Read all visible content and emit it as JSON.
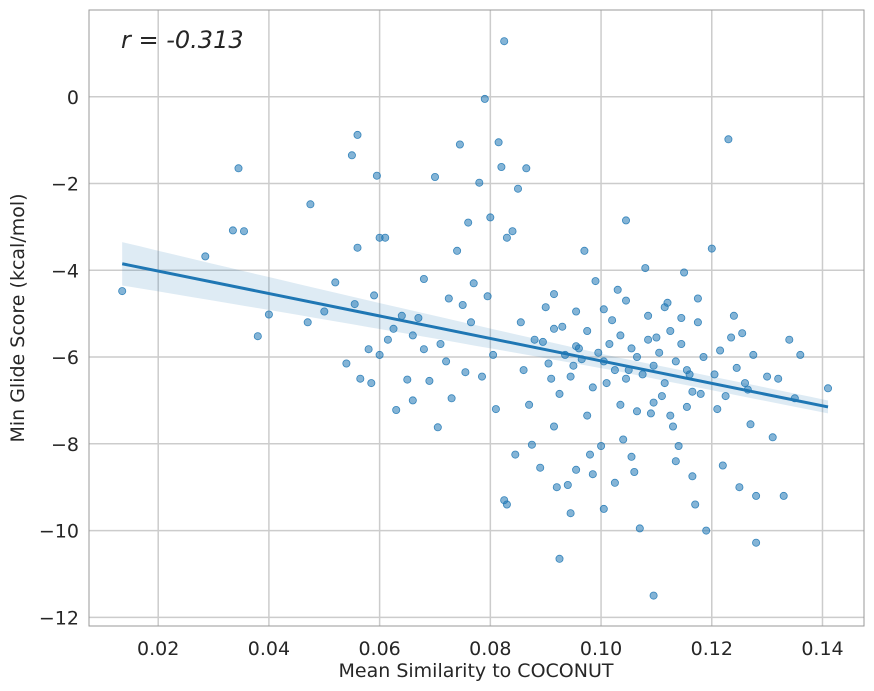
{
  "chart_data": {
    "type": "scatter",
    "title": "",
    "xlabel": "Mean Similarity to COCONUT",
    "ylabel": "Min Glide Score (kcal/mol)",
    "xlim": [
      0.0075,
      0.1475
    ],
    "ylim": [
      -12.2,
      2.0
    ],
    "x_ticks": [
      0.02,
      0.04,
      0.06,
      0.08,
      0.1,
      0.12,
      0.14
    ],
    "x_tick_labels": [
      "0.02",
      "0.04",
      "0.06",
      "0.08",
      "0.10",
      "0.12",
      "0.14"
    ],
    "y_ticks": [
      0,
      -2,
      -4,
      -6,
      -8,
      -10,
      -12
    ],
    "y_tick_labels": [
      "0",
      "−2",
      "−4",
      "−6",
      "−8",
      "−10",
      "−12"
    ],
    "grid": true,
    "annotation": "r = -0.313",
    "regression": {
      "x": [
        0.0135,
        0.141
      ],
      "y": [
        -3.85,
        -7.15
      ],
      "ci_lower": [
        -4.35,
        -7.35
      ],
      "ci_upper": [
        -3.35,
        -6.95
      ]
    },
    "colors": {
      "points": "#1f77b4",
      "line": "#1f77b4",
      "band": "#1f77b4",
      "grid": "#cccccc",
      "frame": "#999999"
    },
    "series": [
      {
        "points": [
          [
            0.0135,
            -4.48
          ],
          [
            0.0285,
            -3.68
          ],
          [
            0.0335,
            -3.08
          ],
          [
            0.0345,
            -1.65
          ],
          [
            0.0355,
            -3.1
          ],
          [
            0.038,
            -5.52
          ],
          [
            0.04,
            -5.02
          ],
          [
            0.047,
            -5.2
          ],
          [
            0.0475,
            -2.48
          ],
          [
            0.05,
            -4.95
          ],
          [
            0.052,
            -4.28
          ],
          [
            0.054,
            -6.15
          ],
          [
            0.055,
            -1.35
          ],
          [
            0.0555,
            -4.78
          ],
          [
            0.056,
            -0.88
          ],
          [
            0.056,
            -3.48
          ],
          [
            0.0565,
            -6.5
          ],
          [
            0.058,
            -5.82
          ],
          [
            0.0585,
            -6.6
          ],
          [
            0.059,
            -4.58
          ],
          [
            0.0595,
            -1.82
          ],
          [
            0.06,
            -3.25
          ],
          [
            0.06,
            -5.95
          ],
          [
            0.061,
            -3.25
          ],
          [
            0.0615,
            -5.6
          ],
          [
            0.0625,
            -5.35
          ],
          [
            0.063,
            -7.22
          ],
          [
            0.064,
            -5.05
          ],
          [
            0.065,
            -6.52
          ],
          [
            0.066,
            -5.5
          ],
          [
            0.066,
            -7.0
          ],
          [
            0.067,
            -5.1
          ],
          [
            0.068,
            -5.82
          ],
          [
            0.068,
            -4.2
          ],
          [
            0.069,
            -6.55
          ],
          [
            0.07,
            -1.85
          ],
          [
            0.0705,
            -7.62
          ],
          [
            0.071,
            -5.7
          ],
          [
            0.072,
            -6.1
          ],
          [
            0.0725,
            -4.65
          ],
          [
            0.073,
            -6.95
          ],
          [
            0.074,
            -3.55
          ],
          [
            0.0745,
            -1.1
          ],
          [
            0.075,
            -4.8
          ],
          [
            0.0755,
            -6.35
          ],
          [
            0.076,
            -2.9
          ],
          [
            0.0765,
            -5.2
          ],
          [
            0.077,
            -4.3
          ],
          [
            0.078,
            -1.98
          ],
          [
            0.0785,
            -6.45
          ],
          [
            0.079,
            -0.05
          ],
          [
            0.0795,
            -4.6
          ],
          [
            0.08,
            -2.78
          ],
          [
            0.0805,
            -5.95
          ],
          [
            0.081,
            -7.2
          ],
          [
            0.0815,
            -1.05
          ],
          [
            0.082,
            -1.62
          ],
          [
            0.0825,
            1.28
          ],
          [
            0.0825,
            -9.3
          ],
          [
            0.083,
            -9.4
          ],
          [
            0.083,
            -3.25
          ],
          [
            0.084,
            -3.1
          ],
          [
            0.0845,
            -8.25
          ],
          [
            0.085,
            -2.12
          ],
          [
            0.0855,
            -5.2
          ],
          [
            0.086,
            -6.3
          ],
          [
            0.0865,
            -1.65
          ],
          [
            0.087,
            -7.1
          ],
          [
            0.0875,
            -8.02
          ],
          [
            0.088,
            -5.6
          ],
          [
            0.089,
            -8.55
          ],
          [
            0.09,
            -4.85
          ],
          [
            0.091,
            -6.5
          ],
          [
            0.0915,
            -7.6
          ],
          [
            0.092,
            -9.0
          ],
          [
            0.0925,
            -10.65
          ],
          [
            0.093,
            -5.3
          ],
          [
            0.094,
            -8.95
          ],
          [
            0.0945,
            -9.6
          ],
          [
            0.095,
            -6.2
          ],
          [
            0.0955,
            -8.6
          ],
          [
            0.096,
            -5.8
          ],
          [
            0.097,
            -3.55
          ],
          [
            0.0975,
            -7.35
          ],
          [
            0.098,
            -8.25
          ],
          [
            0.099,
            -4.25
          ],
          [
            0.1,
            -8.05
          ],
          [
            0.1005,
            -9.5
          ],
          [
            0.101,
            -6.6
          ],
          [
            0.102,
            -5.15
          ],
          [
            0.103,
            -4.45
          ],
          [
            0.104,
            -7.9
          ],
          [
            0.1045,
            -2.85
          ],
          [
            0.105,
            -6.3
          ],
          [
            0.106,
            -8.65
          ],
          [
            0.107,
            -9.95
          ],
          [
            0.108,
            -3.95
          ],
          [
            0.109,
            -7.3
          ],
          [
            0.1095,
            -11.5
          ],
          [
            0.11,
            -5.55
          ],
          [
            0.111,
            -6.9
          ],
          [
            0.112,
            -4.75
          ],
          [
            0.113,
            -7.6
          ],
          [
            0.114,
            -8.05
          ],
          [
            0.115,
            -4.05
          ],
          [
            0.116,
            -6.4
          ],
          [
            0.117,
            -9.4
          ],
          [
            0.118,
            -6.85
          ],
          [
            0.119,
            -10.0
          ],
          [
            0.12,
            -3.5
          ],
          [
            0.121,
            -7.2
          ],
          [
            0.122,
            -8.5
          ],
          [
            0.123,
            -0.98
          ],
          [
            0.124,
            -5.05
          ],
          [
            0.125,
            -9.0
          ],
          [
            0.126,
            -6.6
          ],
          [
            0.127,
            -7.55
          ],
          [
            0.128,
            -9.2
          ],
          [
            0.128,
            -10.28
          ],
          [
            0.13,
            -6.45
          ],
          [
            0.131,
            -7.85
          ],
          [
            0.132,
            -6.5
          ],
          [
            0.133,
            -9.2
          ],
          [
            0.134,
            -5.6
          ],
          [
            0.135,
            -6.95
          ],
          [
            0.136,
            -5.95
          ],
          [
            0.141,
            -6.72
          ],
          [
            0.0995,
            -5.9
          ],
          [
            0.1005,
            -6.1
          ],
          [
            0.1015,
            -5.7
          ],
          [
            0.1025,
            -6.3
          ],
          [
            0.1035,
            -5.5
          ],
          [
            0.1045,
            -6.5
          ],
          [
            0.1055,
            -5.8
          ],
          [
            0.1065,
            -6.0
          ],
          [
            0.1075,
            -6.4
          ],
          [
            0.1085,
            -5.6
          ],
          [
            0.1095,
            -6.2
          ],
          [
            0.1105,
            -5.9
          ],
          [
            0.1115,
            -6.6
          ],
          [
            0.1125,
            -5.4
          ],
          [
            0.1135,
            -6.1
          ],
          [
            0.1145,
            -5.7
          ],
          [
            0.1155,
            -6.3
          ],
          [
            0.1165,
            -6.8
          ],
          [
            0.1175,
            -5.2
          ],
          [
            0.1185,
            -6.0
          ],
          [
            0.0985,
            -6.7
          ],
          [
            0.0975,
            -5.4
          ],
          [
            0.0965,
            -6.05
          ],
          [
            0.0955,
            -5.75
          ],
          [
            0.0945,
            -6.45
          ],
          [
            0.0935,
            -5.95
          ],
          [
            0.0925,
            -6.85
          ],
          [
            0.0915,
            -5.35
          ],
          [
            0.0905,
            -6.15
          ],
          [
            0.0895,
            -5.65
          ],
          [
            0.1205,
            -6.4
          ],
          [
            0.1215,
            -5.85
          ],
          [
            0.1225,
            -6.9
          ],
          [
            0.1235,
            -5.55
          ],
          [
            0.1245,
            -6.25
          ],
          [
            0.1255,
            -5.45
          ],
          [
            0.1265,
            -6.75
          ],
          [
            0.1275,
            -5.95
          ],
          [
            0.1035,
            -7.1
          ],
          [
            0.1065,
            -7.25
          ],
          [
            0.1095,
            -7.05
          ],
          [
            0.1125,
            -7.35
          ],
          [
            0.1155,
            -7.15
          ],
          [
            0.1005,
            -4.9
          ],
          [
            0.1045,
            -4.7
          ],
          [
            0.1085,
            -5.05
          ],
          [
            0.1115,
            -4.85
          ],
          [
            0.1145,
            -5.1
          ],
          [
            0.0955,
            -4.95
          ],
          [
            0.0915,
            -4.55
          ],
          [
            0.1175,
            -4.65
          ],
          [
            0.1055,
            -8.3
          ],
          [
            0.0985,
            -8.7
          ],
          [
            0.1135,
            -8.4
          ],
          [
            0.1025,
            -8.9
          ],
          [
            0.1165,
            -8.75
          ]
        ]
      }
    ]
  }
}
